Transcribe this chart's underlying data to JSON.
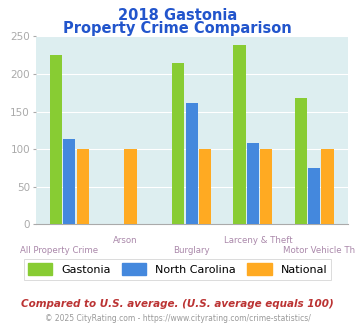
{
  "title_line1": "2018 Gastonia",
  "title_line2": "Property Crime Comparison",
  "categories": [
    "All Property Crime",
    "Arson",
    "Burglary",
    "Larceny & Theft",
    "Motor Vehicle Theft"
  ],
  "gastonia": [
    225,
    0,
    215,
    238,
    168
  ],
  "north_carolina": [
    113,
    0,
    161,
    108,
    75
  ],
  "national": [
    100,
    100,
    100,
    100,
    100
  ],
  "color_gastonia": "#88cc33",
  "color_nc": "#4488dd",
  "color_national": "#ffaa22",
  "bg_color": "#ddeef0",
  "ylim": [
    0,
    250
  ],
  "yticks": [
    0,
    50,
    100,
    150,
    200,
    250
  ],
  "legend_labels": [
    "Gastonia",
    "North Carolina",
    "National"
  ],
  "footnote1": "Compared to U.S. average. (U.S. average equals 100)",
  "footnote2": "© 2025 CityRating.com - https://www.cityrating.com/crime-statistics/",
  "title_color": "#2255cc",
  "footnote1_color": "#bb3333",
  "footnote2_color": "#999999",
  "label_color": "#aa88aa"
}
